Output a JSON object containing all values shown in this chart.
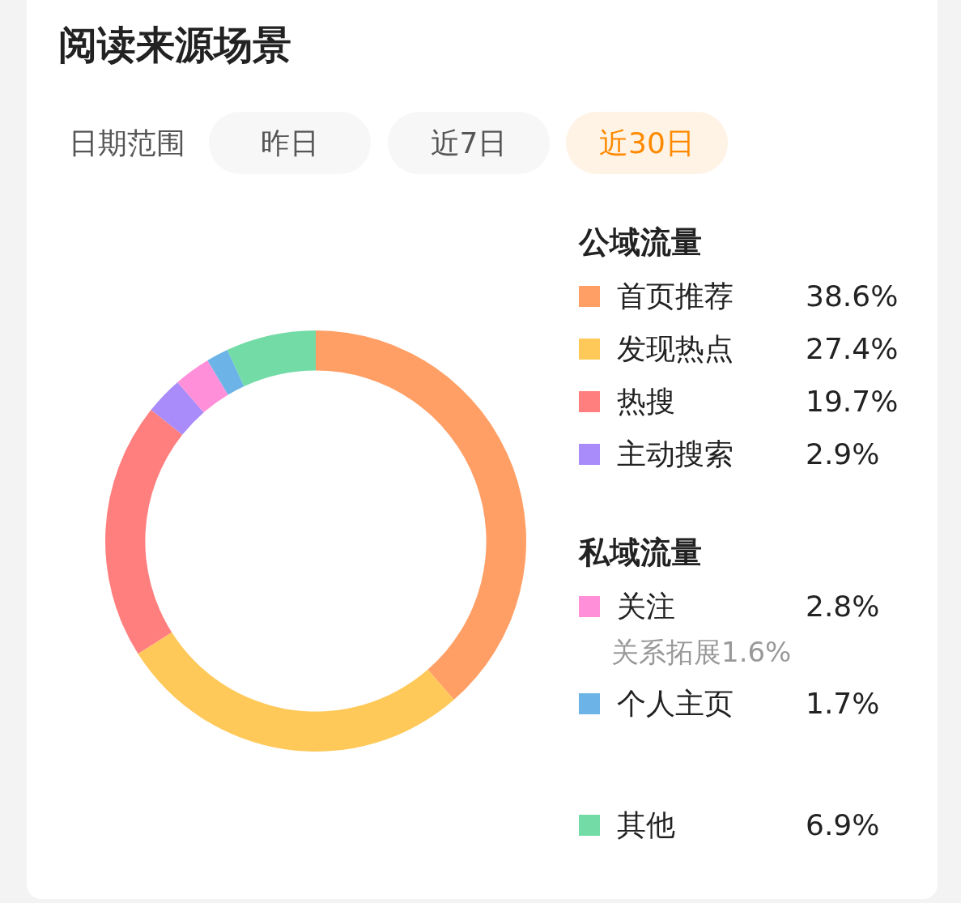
{
  "chart_data": {
    "type": "donut",
    "title": "阅读来源场景",
    "categories": [
      "首页推荐",
      "发现热点",
      "热搜",
      "主动搜索",
      "关注",
      "个人主页",
      "其他"
    ],
    "values": [
      38.6,
      27.4,
      19.7,
      2.9,
      2.8,
      1.7,
      6.9
    ],
    "colors": [
      "#ff9f66",
      "#ffc95a",
      "#ff7f7f",
      "#a98bfa",
      "#ff8fd8",
      "#6cb4e8",
      "#72dba6"
    ],
    "value_labels": [
      "38.6%",
      "27.4%",
      "19.7%",
      "2.9%",
      "2.8%",
      "1.7%",
      "6.9%"
    ],
    "legend": "right",
    "annotations": [
      "日期范围",
      "昨日",
      "近7日",
      "近30日",
      "公域流量",
      "私域流量",
      "关系拓展1.6%"
    ]
  }
}
